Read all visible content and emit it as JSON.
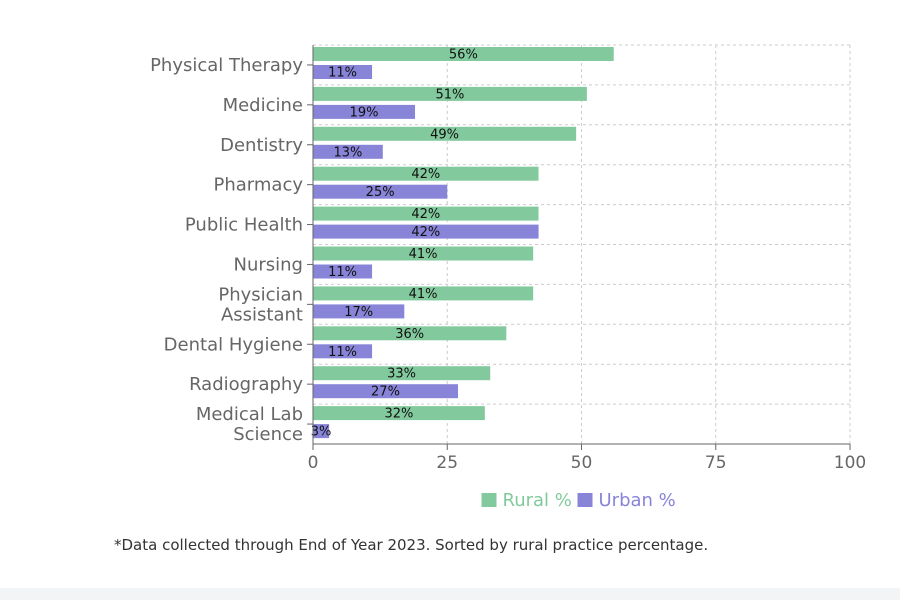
{
  "chart_data": {
    "type": "bar",
    "orientation": "horizontal",
    "categories": [
      [
        "Physical Therapy"
      ],
      [
        "Medicine"
      ],
      [
        "Dentistry"
      ],
      [
        "Pharmacy"
      ],
      [
        "Public Health"
      ],
      [
        "Nursing"
      ],
      [
        "Physician",
        "Assistant"
      ],
      [
        "Dental Hygiene"
      ],
      [
        "Radiography"
      ],
      [
        "Medical Lab",
        "Science"
      ]
    ],
    "series": [
      {
        "name": "Rural %",
        "color": "#82ca9d",
        "values": [
          56,
          51,
          49,
          42,
          42,
          41,
          41,
          36,
          33,
          32
        ]
      },
      {
        "name": "Urban %",
        "color": "#8884d8",
        "values": [
          11,
          19,
          13,
          25,
          42,
          11,
          17,
          11,
          27,
          3
        ]
      }
    ],
    "xlim": [
      0,
      100
    ],
    "xticks": [
      0,
      25,
      50,
      75,
      100
    ],
    "value_suffix": "%",
    "grid": true,
    "legend_position": "bottom"
  },
  "footnote": "*Data collected through End of Year 2023. Sorted by rural practice percentage."
}
